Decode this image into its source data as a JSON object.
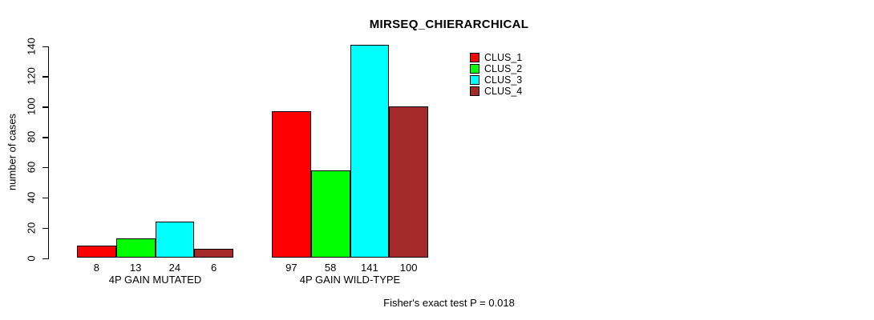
{
  "title": "MIRSEQ_CHIERARCHICAL",
  "annotation": "Fisher's exact test P = 0.018",
  "colors": {
    "background": "#ffffff",
    "axis": "#000000",
    "bar_border": "#000000",
    "clus_1": "#ff0000",
    "clus_2": "#00ff00",
    "clus_3": "#00ffff",
    "clus_4": "#a52a2a"
  },
  "chart_data": {
    "type": "bar",
    "title": "MIRSEQ_CHIERARCHICAL",
    "xlabel": "",
    "ylabel": "number of cases",
    "ylim": [
      0,
      140
    ],
    "yticks": [
      0,
      20,
      40,
      60,
      80,
      100,
      120,
      140
    ],
    "grid": false,
    "legend_position": "top-right",
    "categories": [
      "4P GAIN MUTATED",
      "4P GAIN WILD-TYPE"
    ],
    "series": [
      {
        "name": "CLUS_1",
        "color": "#ff0000",
        "values": [
          8,
          97
        ]
      },
      {
        "name": "CLUS_2",
        "color": "#00ff00",
        "values": [
          13,
          58
        ]
      },
      {
        "name": "CLUS_3",
        "color": "#00ffff",
        "values": [
          24,
          141
        ]
      },
      {
        "name": "CLUS_4",
        "color": "#a52a2a",
        "values": [
          6,
          100
        ]
      }
    ],
    "bar_value_labels": {
      "4P GAIN MUTATED": [
        8,
        13,
        24,
        6
      ],
      "4P GAIN WILD-TYPE": [
        97,
        58,
        141,
        100
      ]
    },
    "annotation": "Fisher's exact test P = 0.018"
  }
}
